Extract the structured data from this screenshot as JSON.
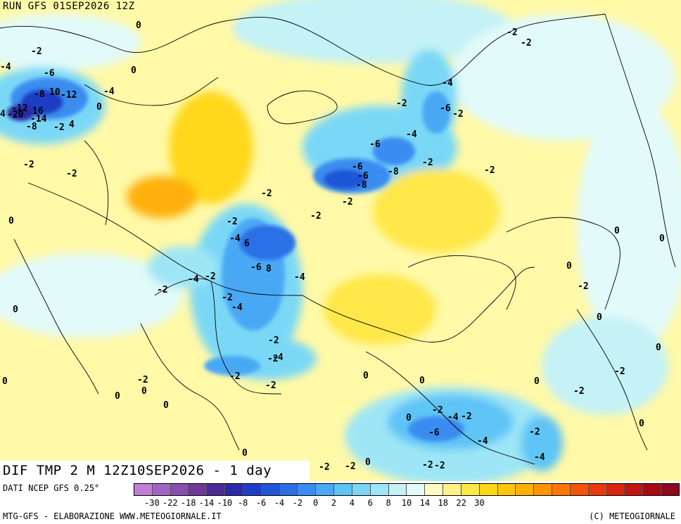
{
  "header": {
    "run_title": "RUN GFS 01SEP2026 12Z"
  },
  "field_title": "DIF TMP 2 M 12Z10SEP2026 - 1 day",
  "footer": {
    "source_label": "DATI NCEP GFS 0.25°",
    "credit": "MTG-GFS - ELABORAZIONE WWW.METEOGIORNALE.IT",
    "copyright": "(C) METEOGIORNALE"
  },
  "legend": {
    "colors": [
      "#c27fd6",
      "#a365c4",
      "#8a4eb0",
      "#6e3a9a",
      "#4a2a94",
      "#2a2aa8",
      "#1f3dc4",
      "#1f55d6",
      "#2b6fe6",
      "#3a8cf0",
      "#4aa8f4",
      "#5ec4f6",
      "#7ad8f6",
      "#9ee6f6",
      "#c4f2f6",
      "#e2fafa",
      "#fffbc0",
      "#fff38a",
      "#ffe84a",
      "#ffd81c",
      "#ffc60c",
      "#ffb00a",
      "#ff9406",
      "#ff7606",
      "#f55404",
      "#e83a0a",
      "#d8240e",
      "#c21410",
      "#a80a14",
      "#8c0a1e"
    ],
    "tick_labels": [
      "-30",
      "-22",
      "-18",
      "-14",
      "-10",
      "-8",
      "-6",
      "-4",
      "-2",
      "0",
      "2",
      "4",
      "6",
      "8",
      "10",
      "14",
      "18",
      "22",
      "30"
    ]
  },
  "contour_labels": [
    {
      "text": "0"
    },
    {
      "text": "-2"
    },
    {
      "text": "-4"
    },
    {
      "text": "-6"
    },
    {
      "text": "0"
    },
    {
      "text": "-8"
    },
    {
      "text": "10"
    },
    {
      "text": "-12"
    },
    {
      "text": "-4"
    },
    {
      "text": "0"
    },
    {
      "text": "-12"
    },
    {
      "text": "16"
    },
    {
      "text": "4"
    },
    {
      "text": "-20"
    },
    {
      "text": "-14"
    },
    {
      "text": "-8"
    },
    {
      "text": "-2"
    },
    {
      "text": "4"
    },
    {
      "text": "-2"
    },
    {
      "text": "-2"
    },
    {
      "text": "-2"
    },
    {
      "text": "-2"
    },
    {
      "text": "-4"
    },
    {
      "text": "-6"
    },
    {
      "text": "-2"
    },
    {
      "text": "-2"
    },
    {
      "text": "-6"
    },
    {
      "text": "-4"
    },
    {
      "text": "-6"
    },
    {
      "text": "-8"
    },
    {
      "text": "-8"
    },
    {
      "text": "-2"
    },
    {
      "text": "-2"
    },
    {
      "text": "-2"
    },
    {
      "text": "-2"
    },
    {
      "text": "-2"
    },
    {
      "text": "0"
    },
    {
      "text": "-2"
    },
    {
      "text": "-4"
    },
    {
      "text": "6"
    },
    {
      "text": "-6"
    },
    {
      "text": "8"
    },
    {
      "text": "-4"
    },
    {
      "text": "-4"
    },
    {
      "text": "-2"
    },
    {
      "text": "-2"
    },
    {
      "text": "-2"
    },
    {
      "text": "-4"
    },
    {
      "text": "0"
    },
    {
      "text": "-2"
    },
    {
      "text": "0"
    },
    {
      "text": "-2"
    },
    {
      "text": "-4"
    },
    {
      "text": "-2"
    },
    {
      "text": "0"
    },
    {
      "text": "0"
    },
    {
      "text": "0"
    },
    {
      "text": "-2"
    },
    {
      "text": "0"
    },
    {
      "text": "-2"
    },
    {
      "text": "-2"
    },
    {
      "text": "0"
    },
    {
      "text": "-2"
    },
    {
      "text": "0"
    },
    {
      "text": "0"
    },
    {
      "text": "0"
    },
    {
      "text": "-2"
    },
    {
      "text": "-4"
    },
    {
      "text": "-2"
    },
    {
      "text": "0"
    },
    {
      "text": "-6"
    },
    {
      "text": "-2"
    },
    {
      "text": "0"
    },
    {
      "text": "-4"
    },
    {
      "text": "-4"
    },
    {
      "text": "0"
    },
    {
      "text": "0"
    },
    {
      "text": "0"
    },
    {
      "text": "-2"
    },
    {
      "text": "-2"
    },
    {
      "text": "0"
    },
    {
      "text": "-2"
    },
    {
      "text": "-2"
    },
    {
      "text": "0"
    },
    {
      "text": "-2"
    },
    {
      "text": "-6"
    }
  ]
}
